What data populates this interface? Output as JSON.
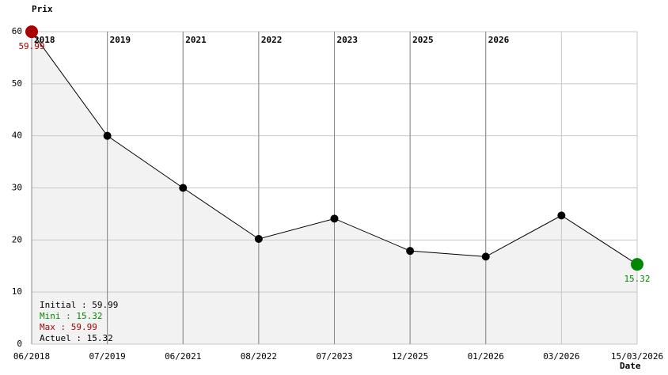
{
  "chart_data": {
    "type": "line",
    "y_label": "Prix",
    "x_label": "Date",
    "categories": [
      "06/2018",
      "07/2019",
      "06/2021",
      "08/2022",
      "07/2023",
      "12/2025",
      "01/2026",
      "03/2026",
      "15/03/2026"
    ],
    "values": [
      59.99,
      40,
      30,
      20.2,
      24.1,
      17.9,
      16.8,
      24.7,
      15.32
    ],
    "year_markers": [
      "2018",
      "2019",
      "2021",
      "2022",
      "2023",
      "2025",
      "2026"
    ],
    "ylim": [
      0,
      60
    ],
    "yticks": [
      0,
      10,
      20,
      30,
      40,
      50,
      60
    ],
    "grid": true,
    "color": "#000000",
    "fill": "#f2f2f2",
    "max_color": "#aa0000",
    "min_color": "#008800",
    "stats": [
      {
        "text": "Initial : 59.99",
        "color": "#000000"
      },
      {
        "text": "Mini : 15.32",
        "color": "#008800"
      },
      {
        "text": "Max : 59.99",
        "color": "#aa0000"
      },
      {
        "text": "Actuel : 15.32",
        "color": "#000000"
      }
    ]
  }
}
